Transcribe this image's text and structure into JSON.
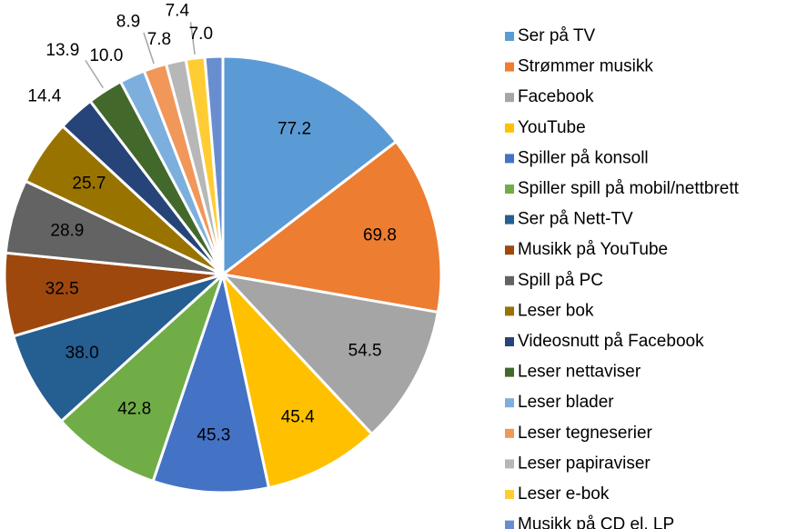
{
  "chart_data": {
    "type": "pie",
    "categories": [
      "Ser på TV",
      "Strømmer musikk",
      "Facebook",
      "YouTube",
      "Spiller på konsoll",
      "Spiller spill på mobil/nettbrett",
      "Ser på Nett-TV",
      "Musikk på YouTube",
      "Spill på PC",
      "Leser bok",
      "Videosnutt på Facebook",
      "Leser nettaviser",
      "Leser blader",
      "Leser tegneserier",
      "Leser papiraviser",
      "Leser e-bok",
      "Musikk på CD el. LP"
    ],
    "values": [
      77.2,
      69.8,
      54.5,
      45.4,
      45.3,
      42.8,
      38,
      32.5,
      28.9,
      25.7,
      14.4,
      13.9,
      10,
      8.9,
      7.8,
      7.4,
      7
    ],
    "value_labels": [
      "77.2",
      "69.8",
      "54.5",
      "45.4",
      "45.3",
      "42.8",
      "38.0",
      "32.5",
      "28.9",
      "25.7",
      "14.4",
      "13.9",
      "10.0",
      "8.9",
      "7.8",
      "7.4",
      "7.0"
    ],
    "colors": [
      "#5b9bd5",
      "#ed7d31",
      "#a5a5a5",
      "#ffc000",
      "#4472c4",
      "#70ad47",
      "#255e91",
      "#9e480e",
      "#636363",
      "#997300",
      "#264478",
      "#43682b",
      "#7cafdd",
      "#f1975a",
      "#b7b7b7",
      "#ffcd33",
      "#698ed0"
    ],
    "legend": "right"
  }
}
